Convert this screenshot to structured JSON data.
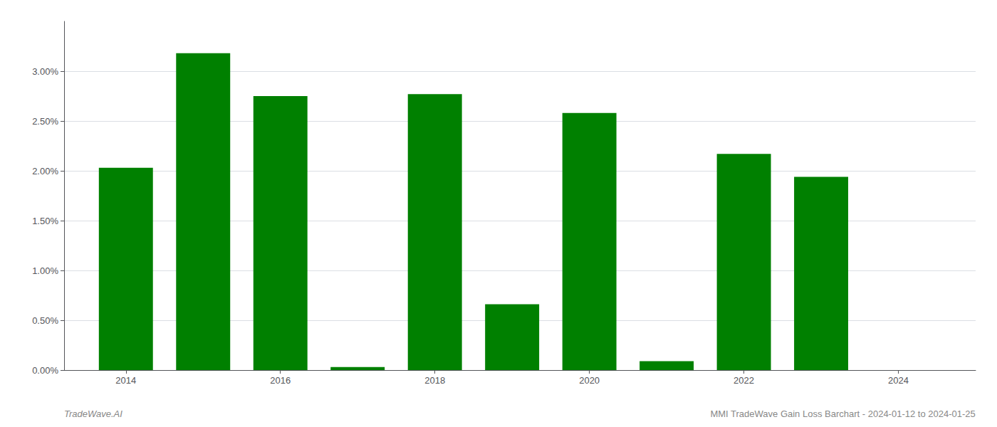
{
  "chart_data": {
    "type": "bar",
    "x": [
      2014,
      2015,
      2016,
      2017,
      2018,
      2019,
      2020,
      2021,
      2022,
      2023
    ],
    "values": [
      0.0203,
      0.0318,
      0.0275,
      0.0003,
      0.0277,
      0.0066,
      0.0258,
      0.0009,
      0.0217,
      0.0194
    ],
    "color": "#008000",
    "xlim": [
      2013.2,
      2025.0
    ],
    "xticks": [
      2014,
      2016,
      2018,
      2020,
      2022,
      2024
    ],
    "ylim": [
      0,
      0.035
    ],
    "yticks": [
      {
        "value": 0.0,
        "label": "0.00%"
      },
      {
        "value": 0.005,
        "label": "0.50%"
      },
      {
        "value": 0.01,
        "label": "1.00%"
      },
      {
        "value": 0.015,
        "label": "1.50%"
      },
      {
        "value": 0.02,
        "label": "2.00%"
      },
      {
        "value": 0.025,
        "label": "2.50%"
      },
      {
        "value": 0.03,
        "label": "3.00%"
      }
    ],
    "grid": true,
    "annotations": [
      "TradeWave.AI",
      "MMI TradeWave Gain Loss Barchart - 2024-01-12 to 2024-01-25"
    ]
  }
}
